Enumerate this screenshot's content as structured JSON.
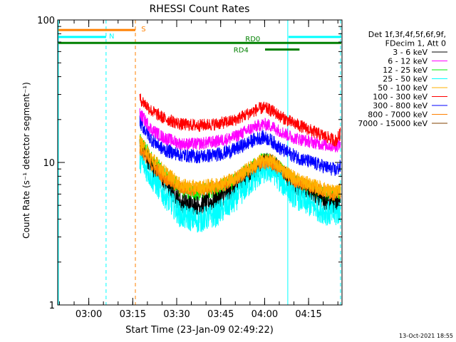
{
  "chart_data": {
    "type": "line",
    "title": "RHESSI Count Rates",
    "xlabel": "Start Time (23-Jan-09 02:49:22)",
    "ylabel": "Count Rate (s⁻¹ detector segment⁻¹)",
    "y_scale": "log",
    "ylim": [
      1,
      100
    ],
    "xlim_minutes_after_start": [
      0,
      97
    ],
    "y_ticks": [
      "1",
      "10",
      "100"
    ],
    "x_ticks": [
      {
        "label": "03:00",
        "t": 10.6
      },
      {
        "label": "03:15",
        "t": 25.6
      },
      {
        "label": "03:30",
        "t": 40.6
      },
      {
        "label": "03:45",
        "t": 55.6
      },
      {
        "label": "04:00",
        "t": 70.6
      },
      {
        "label": "04:15",
        "t": 85.6
      }
    ],
    "legend": {
      "placement": "right",
      "header": [
        "Det 1f,3f,4f,5f,6f,9f,",
        "FDecim 1, Att 0"
      ]
    },
    "series": [
      {
        "name": "3 - 6 keV",
        "color": "#000000",
        "t": [
          28,
          32,
          36,
          42,
          48,
          54,
          60,
          64,
          68,
          70,
          72,
          74,
          76,
          80,
          84,
          88,
          92,
          95,
          96.5
        ],
        "values": [
          13,
          9.5,
          7.4,
          5.2,
          5.0,
          5.4,
          6.4,
          7.8,
          9.0,
          9.8,
          10.0,
          9.6,
          8.6,
          7.2,
          6.4,
          5.8,
          5.3,
          5.1,
          5.4
        ]
      },
      {
        "name": "6 - 12 keV",
        "color": "#ff00ff",
        "t": [
          28,
          32,
          36,
          42,
          48,
          54,
          60,
          64,
          68,
          70,
          72,
          74,
          76,
          80,
          84,
          88,
          92,
          95,
          96.5
        ],
        "values": [
          22,
          17,
          15,
          13.5,
          13.5,
          14,
          15,
          16.5,
          18,
          18.5,
          18.3,
          17.5,
          16.5,
          15,
          14.3,
          13.7,
          13.2,
          13,
          13.6
        ]
      },
      {
        "name": "12 - 25 keV",
        "color": "#00ee00",
        "t": [
          28,
          32,
          36,
          42,
          48,
          54,
          60,
          64,
          68,
          70,
          72,
          74,
          76,
          80,
          84,
          88,
          92,
          95,
          96.5
        ],
        "values": [
          14,
          10.5,
          8.4,
          6.4,
          6.1,
          6.5,
          7.3,
          8.5,
          9.6,
          10.2,
          10.2,
          9.8,
          8.9,
          7.6,
          6.8,
          6.3,
          5.9,
          5.7,
          6.0
        ]
      },
      {
        "name": "25 - 50 keV",
        "color": "#00ffff",
        "t": [
          28,
          32,
          36,
          42,
          48,
          54,
          60,
          64,
          68,
          70,
          72,
          74,
          76,
          80,
          84,
          88,
          92,
          95,
          96.5
        ],
        "values": [
          10.5,
          7.8,
          6.0,
          4.2,
          3.9,
          4.3,
          5.3,
          6.6,
          7.9,
          8.6,
          8.8,
          8.4,
          7.4,
          6.0,
          5.3,
          4.8,
          4.4,
          4.3,
          4.6
        ]
      },
      {
        "name": "50 - 100 keV",
        "color": "#ffb000",
        "t": [
          28,
          32,
          36,
          42,
          48,
          54,
          60,
          64,
          68,
          70,
          72,
          74,
          76,
          80,
          84,
          88,
          92,
          95,
          96.5
        ],
        "values": [
          14,
          10.8,
          8.8,
          6.9,
          6.7,
          7.0,
          7.7,
          8.8,
          9.9,
          10.4,
          10.4,
          10.0,
          9.2,
          8.0,
          7.3,
          6.8,
          6.4,
          6.2,
          6.5
        ]
      },
      {
        "name": "100 - 300 keV",
        "color": "#ff0000",
        "t": [
          28,
          32,
          36,
          42,
          48,
          54,
          60,
          64,
          68,
          70,
          72,
          74,
          76,
          80,
          84,
          88,
          92,
          95,
          96.5
        ],
        "values": [
          28,
          23,
          20.5,
          18.5,
          18.2,
          18.6,
          19.6,
          21.5,
          23.5,
          24.2,
          23.6,
          22.5,
          21,
          19,
          17.6,
          16.2,
          15,
          14.2,
          16
        ]
      },
      {
        "name": "300 - 800 keV",
        "color": "#0000ff",
        "t": [
          28,
          32,
          36,
          42,
          48,
          54,
          60,
          64,
          68,
          70,
          72,
          74,
          76,
          80,
          84,
          88,
          92,
          95,
          96.5
        ],
        "values": [
          19,
          14.5,
          12.3,
          11.3,
          11.0,
          11.3,
          12.2,
          13.4,
          14.7,
          15.0,
          14.6,
          13.6,
          12.5,
          11.3,
          10.4,
          9.8,
          9.2,
          8.8,
          9.4
        ]
      },
      {
        "name": "800 - 7000 keV",
        "color": "#ff8000",
        "t": [
          28,
          32,
          36,
          42,
          48,
          54,
          60,
          64,
          68,
          70,
          72,
          74,
          76,
          80,
          84,
          88,
          92,
          95,
          96.5
        ],
        "values": [
          12.5,
          9.6,
          7.9,
          6.6,
          6.4,
          6.7,
          7.4,
          8.5,
          9.5,
          10.0,
          10.0,
          9.6,
          8.8,
          7.6,
          7.0,
          6.6,
          6.2,
          6.0,
          6.3
        ]
      },
      {
        "name": "7000 - 15000 keV",
        "color": "#804000",
        "t": [],
        "values": []
      }
    ],
    "state_bars": [
      {
        "label": "S",
        "color": "#ff8000",
        "t0": 0,
        "t1": 26.5,
        "level": 85
      },
      {
        "label": "N",
        "color": "#00ffff",
        "t0": 0,
        "t1": 16.5,
        "level": 76
      },
      {
        "label": "",
        "color": "#00ffff",
        "t0": 78.5,
        "t1": 97,
        "level": 76
      },
      {
        "label": "RD0",
        "color": "#008000",
        "t0": 0,
        "t1": 97,
        "level": 69
      },
      {
        "label": "RD4",
        "color": "#008000",
        "t0": 70.5,
        "t1": 82.5,
        "level": 62
      }
    ],
    "vertical_markers": [
      {
        "t": 16.5,
        "color": "#00ffff",
        "style": "dashed"
      },
      {
        "t": 26.5,
        "color": "#ff8000",
        "style": "dashed"
      },
      {
        "t": 78.5,
        "color": "#00ffff",
        "style": "solid"
      },
      {
        "t": 96.5,
        "color": "#00ffff",
        "style": "dashed"
      }
    ]
  },
  "footer": {
    "timestamp": "13-Oct-2021 18:55"
  }
}
